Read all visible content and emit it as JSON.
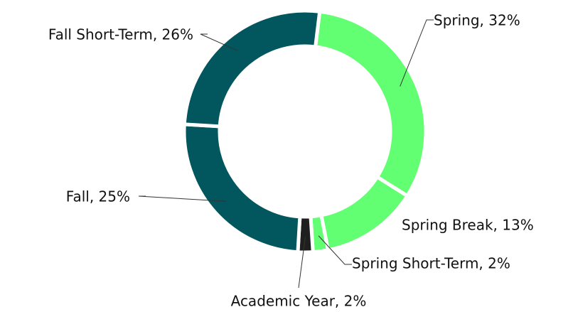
{
  "chart_data": {
    "type": "donut",
    "values": [
      32,
      13,
      2,
      2,
      25,
      26
    ],
    "value_labels": [
      "Spring, 32%",
      "Spring Break, 13%",
      "Spring Short-Term, 2%",
      "Academic Year, 2%",
      "Fall, 25%",
      "Fall Short-Term, 26%"
    ],
    "colors": [
      "#63ff73",
      "#63ff73",
      "#63ff73",
      "#1f1f1f",
      "#02565e",
      "#02565e"
    ]
  }
}
